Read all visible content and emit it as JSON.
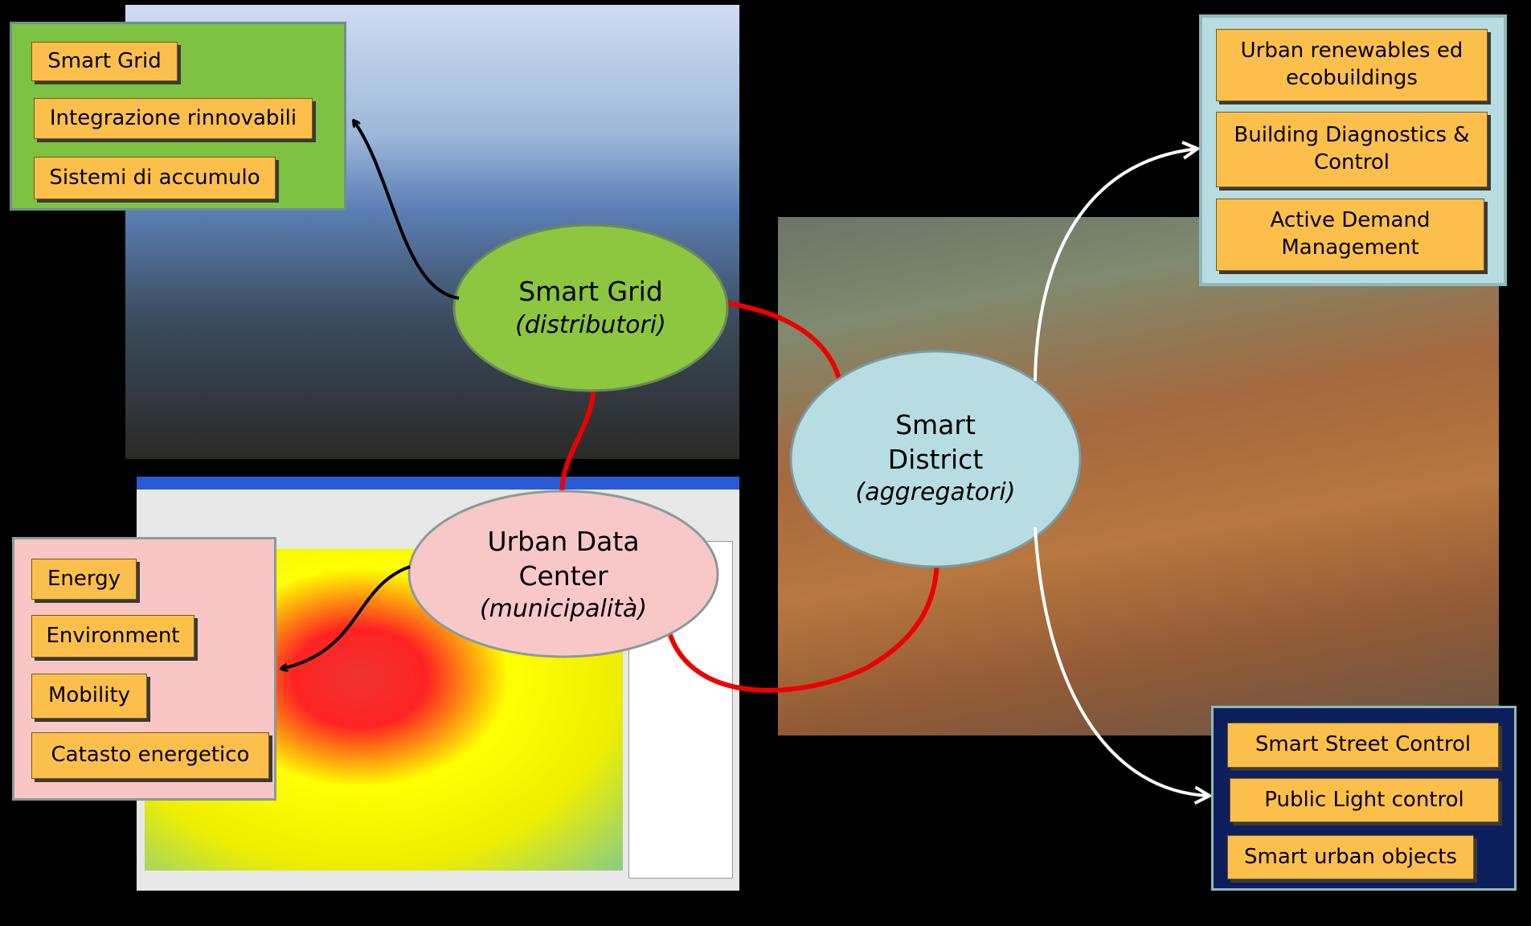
{
  "nodes": [
    {
      "label": "Smart Grid",
      "role": "(distributori)"
    },
    {
      "label": "Urban Data Center",
      "role": "(municipalità)"
    },
    {
      "label": "Smart District",
      "role": "(aggregatori)"
    }
  ],
  "panels": [
    {
      "items": [
        "Smart Grid",
        "Integrazione rinnovabili",
        "Sistemi di accumulo"
      ]
    },
    {
      "items": [
        "Urban renewables ed ecobuildings",
        "Building Diagnostics & Control",
        "Active Demand Management"
      ]
    },
    {
      "items": [
        "Energy",
        "Environment",
        "Mobility",
        "Catasto energetico"
      ]
    },
    {
      "items": [
        "Smart Street Control",
        "Public Light control",
        "Smart urban objects"
      ]
    }
  ]
}
